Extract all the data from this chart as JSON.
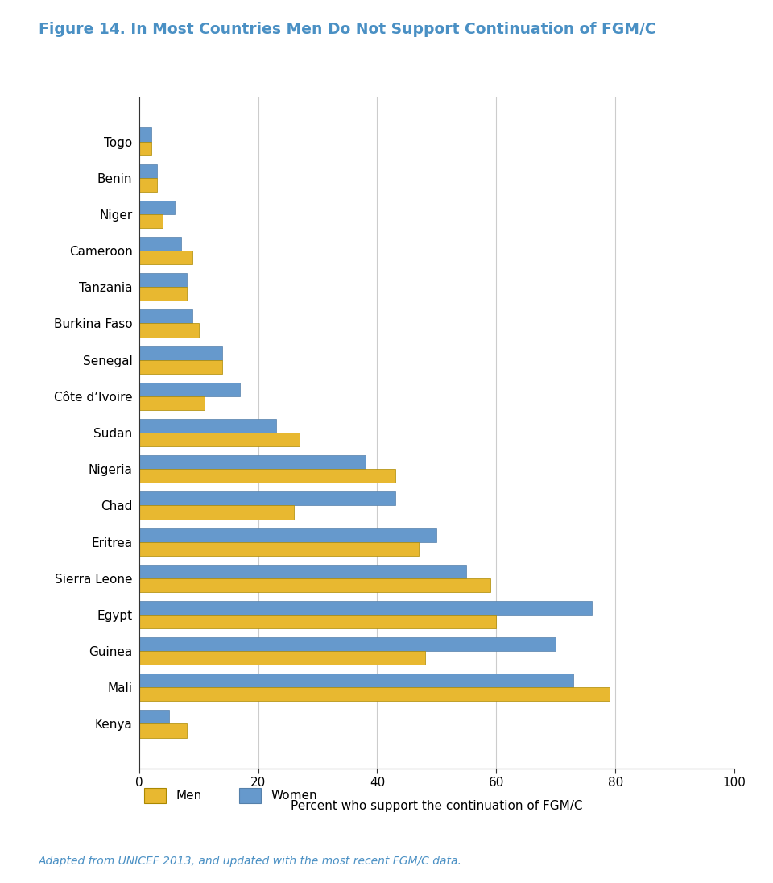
{
  "title": "Figure 14. In Most Countries Men Do Not Support Continuation of FGM/C",
  "xlabel": "Percent who support the continuation of FGM/C",
  "footnote": "Adapted from UNICEF 2013, and updated with the most recent FGM/C data.",
  "countries": [
    "Kenya",
    "Mali",
    "Guinea",
    "Egypt",
    "Sierra Leone",
    "Eritrea",
    "Chad",
    "Nigeria",
    "Sudan",
    "Côte d’Ivoire",
    "Senegal",
    "Burkina Faso",
    "Tanzania",
    "Cameroon",
    "Niger",
    "Benin",
    "Togo"
  ],
  "women": [
    5,
    73,
    70,
    76,
    55,
    50,
    43,
    38,
    23,
    17,
    14,
    9,
    8,
    7,
    6,
    3,
    2
  ],
  "men": [
    8,
    79,
    48,
    60,
    59,
    47,
    26,
    43,
    27,
    11,
    14,
    10,
    8,
    9,
    4,
    3,
    2
  ],
  "women_color": "#6699CC",
  "men_color": "#E8B830",
  "women_edge": "#5580AA",
  "men_edge": "#AA8800",
  "title_color": "#4A90C4",
  "footnote_color": "#4A90C4",
  "xlim_max": 100,
  "xticks": [
    0,
    20,
    40,
    60,
    80,
    100
  ],
  "bar_height": 0.38,
  "background_color": "#FFFFFF"
}
